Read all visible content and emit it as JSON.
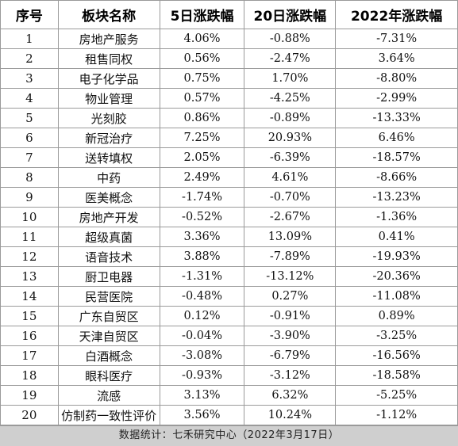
{
  "table": {
    "headers": [
      "序号",
      "板块名称",
      "5日涨跌幅",
      "20日涨跌幅",
      "2022年涨跌幅"
    ],
    "rows": [
      [
        "1",
        "房地产服务",
        "4.06%",
        "-0.88%",
        "-7.31%"
      ],
      [
        "2",
        "租售同权",
        "0.56%",
        "-2.47%",
        "3.64%"
      ],
      [
        "3",
        "电子化学品",
        "0.75%",
        "1.70%",
        "-8.80%"
      ],
      [
        "4",
        "物业管理",
        "0.57%",
        "-4.25%",
        "-2.99%"
      ],
      [
        "5",
        "光刻胶",
        "0.86%",
        "-0.89%",
        "-13.33%"
      ],
      [
        "6",
        "新冠治疗",
        "7.25%",
        "20.93%",
        "6.46%"
      ],
      [
        "7",
        "送转填权",
        "2.05%",
        "-6.39%",
        "-18.57%"
      ],
      [
        "8",
        "中药",
        "2.49%",
        "4.61%",
        "-8.66%"
      ],
      [
        "9",
        "医美概念",
        "-1.74%",
        "-0.70%",
        "-13.23%"
      ],
      [
        "10",
        "房地产开发",
        "-0.52%",
        "-2.67%",
        "-1.36%"
      ],
      [
        "11",
        "超级真菌",
        "3.36%",
        "13.09%",
        "0.41%"
      ],
      [
        "12",
        "语音技术",
        "3.88%",
        "-7.89%",
        "-19.93%"
      ],
      [
        "13",
        "厨卫电器",
        "-1.31%",
        "-13.12%",
        "-20.36%"
      ],
      [
        "14",
        "民营医院",
        "-0.48%",
        "0.27%",
        "-11.08%"
      ],
      [
        "15",
        "广东自贸区",
        "0.12%",
        "-0.91%",
        "0.89%"
      ],
      [
        "16",
        "天津自贸区",
        "-0.04%",
        "-3.90%",
        "-3.25%"
      ],
      [
        "17",
        "白酒概念",
        "-3.08%",
        "-6.79%",
        "-16.56%"
      ],
      [
        "18",
        "眼科医疗",
        "-0.93%",
        "-3.12%",
        "-18.58%"
      ],
      [
        "19",
        "流感",
        "3.13%",
        "6.32%",
        "-5.25%"
      ],
      [
        "20",
        "仿制药一致性评价",
        "3.56%",
        "10.24%",
        "-1.12%"
      ]
    ]
  },
  "footer": {
    "text": "数据统计：七禾研究中心（2022年3月17日）"
  }
}
